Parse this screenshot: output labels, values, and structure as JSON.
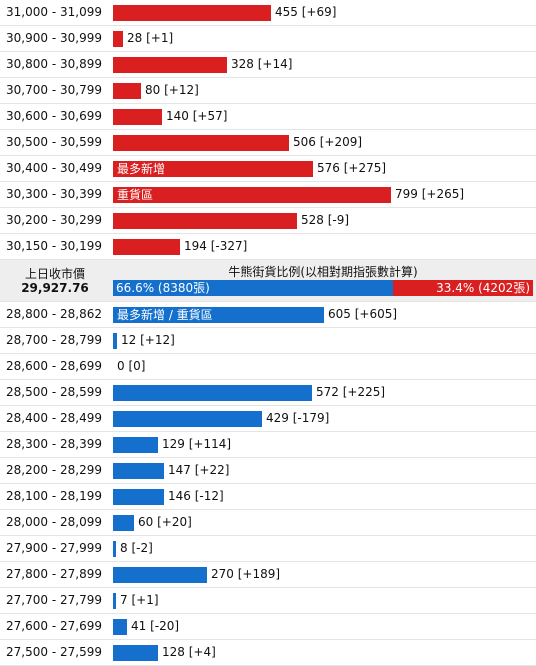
{
  "chart_data": {
    "type": "bar",
    "orientation": "horizontal",
    "bear_rows": [
      {
        "range": "31,000 - 31,099",
        "value": 455,
        "change": "[+69]",
        "tag": ""
      },
      {
        "range": "30,900 - 30,999",
        "value": 28,
        "change": "[+1]",
        "tag": ""
      },
      {
        "range": "30,800 - 30,899",
        "value": 328,
        "change": "[+14]",
        "tag": ""
      },
      {
        "range": "30,700 - 30,799",
        "value": 80,
        "change": "[+12]",
        "tag": ""
      },
      {
        "range": "30,600 - 30,699",
        "value": 140,
        "change": "[+57]",
        "tag": ""
      },
      {
        "range": "30,500 - 30,599",
        "value": 506,
        "change": "[+209]",
        "tag": ""
      },
      {
        "range": "30,400 - 30,499",
        "value": 576,
        "change": "[+275]",
        "tag": "最多新增"
      },
      {
        "range": "30,300 - 30,399",
        "value": 799,
        "change": "[+265]",
        "tag": "重貨區"
      },
      {
        "range": "30,200 - 30,299",
        "value": 528,
        "change": "[-9]",
        "tag": ""
      },
      {
        "range": "30,150 - 30,199",
        "value": 194,
        "change": "[-327]",
        "tag": ""
      }
    ],
    "previous_close": {
      "label": "上日收市價",
      "value": "29,927.76"
    },
    "ratio": {
      "title": "牛熊街貨比例(以相對期指張數計算)",
      "bull_percent": 66.6,
      "bull_label": "66.6% (8380張)",
      "bear_percent": 33.4,
      "bear_label": "33.4% (4202張)"
    },
    "bull_rows": [
      {
        "range": "28,800 - 28,862",
        "value": 605,
        "change": "[+605]",
        "tag": "最多新增 / 重貨區"
      },
      {
        "range": "28,700 - 28,799",
        "value": 12,
        "change": "[+12]",
        "tag": ""
      },
      {
        "range": "28,600 - 28,699",
        "value": 0,
        "change": "[0]",
        "tag": ""
      },
      {
        "range": "28,500 - 28,599",
        "value": 572,
        "change": "[+225]",
        "tag": ""
      },
      {
        "range": "28,400 - 28,499",
        "value": 429,
        "change": "[-179]",
        "tag": ""
      },
      {
        "range": "28,300 - 28,399",
        "value": 129,
        "change": "[+114]",
        "tag": ""
      },
      {
        "range": "28,200 - 28,299",
        "value": 147,
        "change": "[+22]",
        "tag": ""
      },
      {
        "range": "28,100 - 28,199",
        "value": 146,
        "change": "[-12]",
        "tag": ""
      },
      {
        "range": "28,000 - 28,099",
        "value": 60,
        "change": "[+20]",
        "tag": ""
      },
      {
        "range": "27,900 - 27,999",
        "value": 8,
        "change": "[-2]",
        "tag": ""
      },
      {
        "range": "27,800 - 27,899",
        "value": 270,
        "change": "[+189]",
        "tag": ""
      },
      {
        "range": "27,700 - 27,799",
        "value": 7,
        "change": "[+1]",
        "tag": ""
      },
      {
        "range": "27,600 - 27,699",
        "value": 41,
        "change": "[-20]",
        "tag": ""
      },
      {
        "range": "27,500 - 27,599",
        "value": 128,
        "change": "[+4]",
        "tag": ""
      }
    ],
    "colors": {
      "bear": "#d91f1f",
      "bull": "#1470cc"
    },
    "xlim": [
      0,
      799
    ]
  }
}
